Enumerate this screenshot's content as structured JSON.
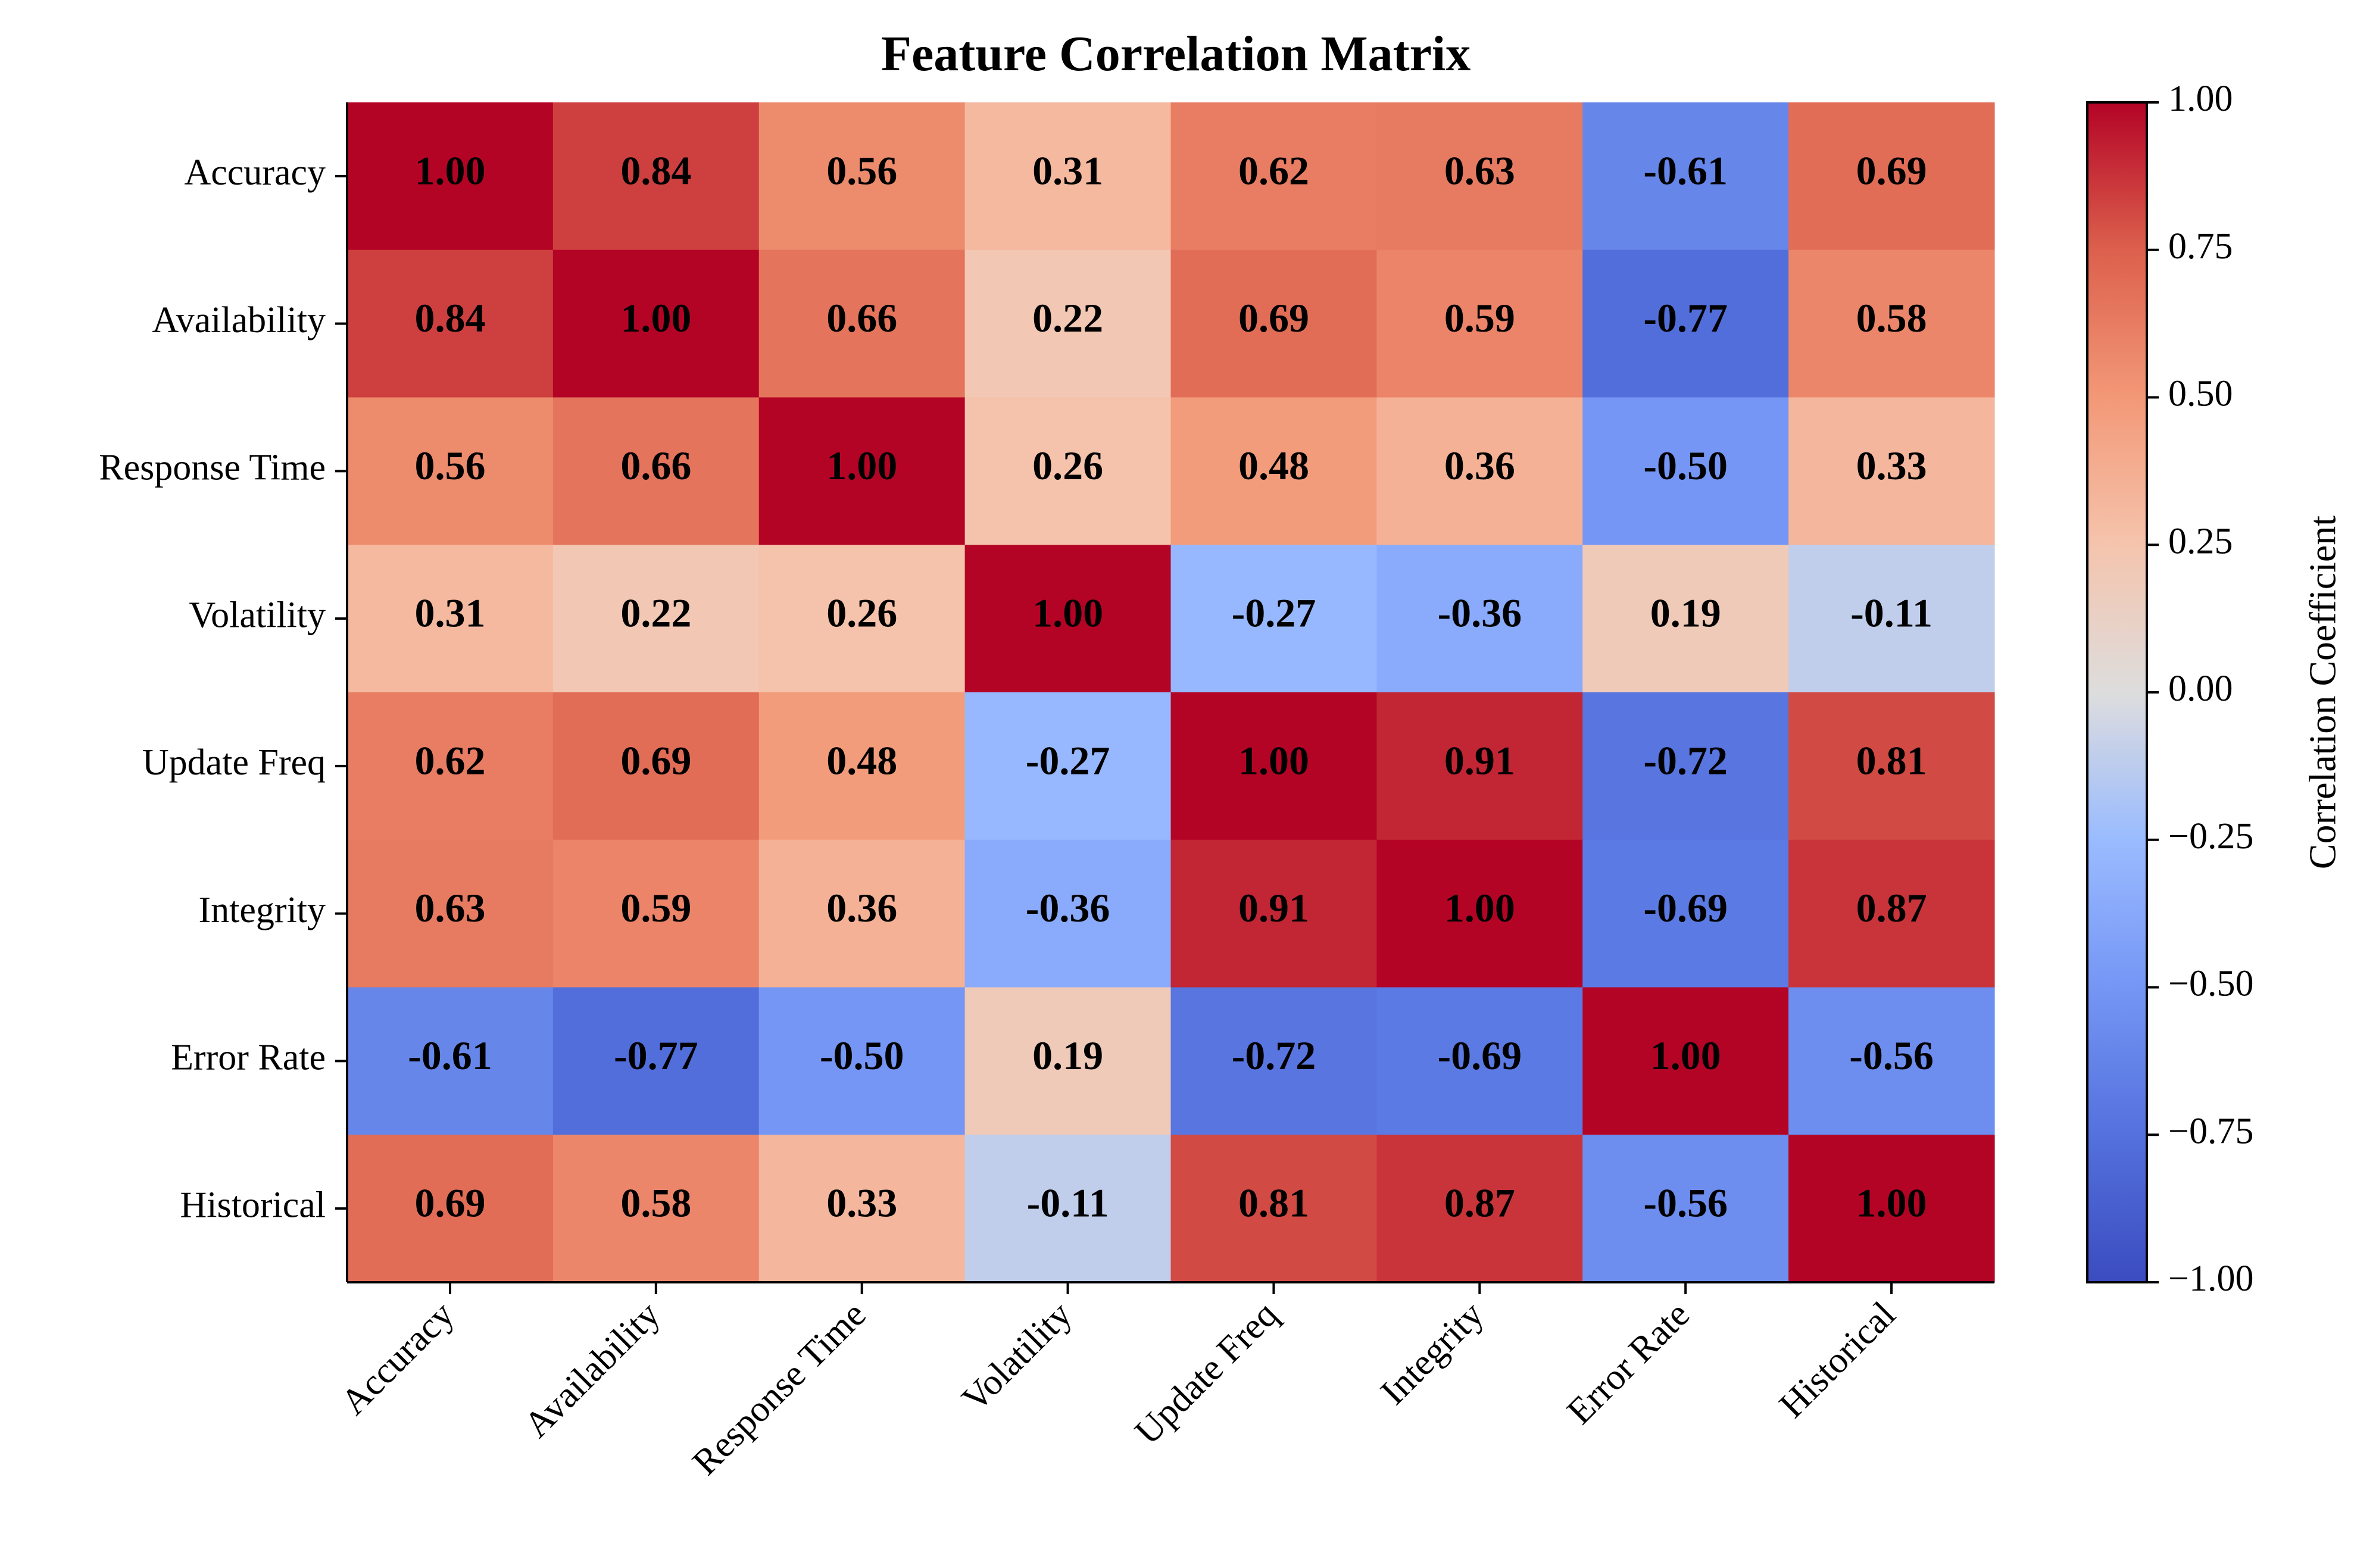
{
  "chart_data": {
    "type": "heatmap",
    "title": "Feature Correlation Matrix",
    "row_labels": [
      "Accuracy",
      "Availability",
      "Response Time",
      "Volatility",
      "Update Freq",
      "Integrity",
      "Error Rate",
      "Historical"
    ],
    "col_labels": [
      "Accuracy",
      "Availability",
      "Response Time",
      "Volatility",
      "Update Freq",
      "Integrity",
      "Error Rate",
      "Historical"
    ],
    "values": [
      [
        1.0,
        0.84,
        0.56,
        0.31,
        0.62,
        0.63,
        -0.61,
        0.69
      ],
      [
        0.84,
        1.0,
        0.66,
        0.22,
        0.69,
        0.59,
        -0.77,
        0.58
      ],
      [
        0.56,
        0.66,
        1.0,
        0.26,
        0.48,
        0.36,
        -0.5,
        0.33
      ],
      [
        0.31,
        0.22,
        0.26,
        1.0,
        -0.27,
        -0.36,
        0.19,
        -0.11
      ],
      [
        0.62,
        0.69,
        0.48,
        -0.27,
        1.0,
        0.91,
        -0.72,
        0.81
      ],
      [
        0.63,
        0.59,
        0.36,
        -0.36,
        0.91,
        1.0,
        -0.69,
        0.87
      ],
      [
        -0.61,
        -0.77,
        -0.5,
        0.19,
        -0.72,
        -0.69,
        1.0,
        -0.56
      ],
      [
        0.69,
        0.58,
        0.33,
        -0.11,
        0.81,
        0.87,
        -0.56,
        1.0
      ]
    ],
    "value_format_decimals": 2,
    "colormap": "coolwarm",
    "colorbar": {
      "label": "Correlation Coefficient",
      "range": [
        -1.0,
        1.0
      ],
      "ticks": [
        "1.00",
        "0.75",
        "0.50",
        "0.25",
        "0.00",
        "−0.25",
        "−0.50",
        "−0.75",
        "−1.00"
      ],
      "tick_values": [
        1.0,
        0.75,
        0.5,
        0.25,
        0.0,
        -0.25,
        -0.5,
        -0.75,
        -1.0
      ]
    },
    "grid": false
  }
}
